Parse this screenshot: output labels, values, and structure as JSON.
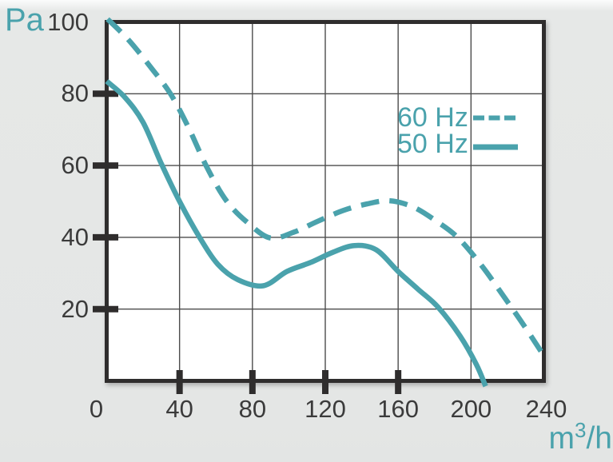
{
  "units": {
    "pressure": "Pa",
    "flow_base": "m",
    "flow_sup": "3",
    "flow_rest": "/h"
  },
  "legend": [
    {
      "label": "60 Hz",
      "line_style": "dashed"
    },
    {
      "label": "50 Hz",
      "line_style": "solid"
    }
  ],
  "colors": {
    "accent": "#4aa2ac",
    "axis": "#2f2d2d",
    "grid": "#4c4c4c",
    "tick_label": "#3b3b3b",
    "plot_bg": "#ffffff",
    "page_bg": "#e5e7e6"
  },
  "axes": {
    "x": {
      "ticks": [
        0,
        40,
        80,
        120,
        160,
        200,
        240
      ],
      "gridlines": [
        40,
        80,
        120,
        160,
        200
      ],
      "tick_marks": [
        40,
        80,
        120,
        160
      ],
      "min": 0,
      "max": 240,
      "unit": "m3/h"
    },
    "y": {
      "ticks": [
        100,
        80,
        60,
        40,
        20
      ],
      "gridlines": [
        20,
        40,
        60,
        80
      ],
      "tick_marks": [
        20,
        40,
        60,
        80
      ],
      "min": 0,
      "max": 100,
      "unit": "Pa"
    }
  },
  "chart_data": {
    "type": "line",
    "xlabel": "m3/h",
    "ylabel": "Pa",
    "xlim": [
      0,
      240
    ],
    "ylim": [
      0,
      100
    ],
    "grid": true,
    "legend_position": "upper-right-inside",
    "series": [
      {
        "name": "60 Hz",
        "line_style": "dashed",
        "points": [
          [
            0.5,
            100.8
          ],
          [
            12,
            95
          ],
          [
            24,
            87.5
          ],
          [
            35,
            80
          ],
          [
            45,
            70.5
          ],
          [
            55,
            59.5
          ],
          [
            66,
            50
          ],
          [
            78,
            43.8
          ],
          [
            90,
            39.8
          ],
          [
            103,
            41.5
          ],
          [
            116,
            44.5
          ],
          [
            130,
            47.5
          ],
          [
            143,
            49.3
          ],
          [
            155,
            50.2
          ],
          [
            168,
            48.5
          ],
          [
            181,
            44.5
          ],
          [
            193,
            39.8
          ],
          [
            206,
            32
          ],
          [
            218,
            23.5
          ],
          [
            229,
            15.5
          ],
          [
            240,
            7
          ]
        ]
      },
      {
        "name": "50 Hz",
        "line_style": "solid",
        "points": [
          [
            0,
            83.5
          ],
          [
            10,
            79
          ],
          [
            20,
            72
          ],
          [
            30,
            60.5
          ],
          [
            40,
            50
          ],
          [
            51,
            40
          ],
          [
            61,
            32.5
          ],
          [
            72,
            28.2
          ],
          [
            86,
            26.5
          ],
          [
            99,
            30.5
          ],
          [
            112,
            33
          ],
          [
            124,
            35.8
          ],
          [
            136,
            37.7
          ],
          [
            148,
            36.5
          ],
          [
            160,
            30.5
          ],
          [
            171,
            25.5
          ],
          [
            182,
            20.5
          ],
          [
            194,
            12.5
          ],
          [
            203,
            4.5
          ],
          [
            208,
            -1.5
          ]
        ]
      }
    ]
  }
}
